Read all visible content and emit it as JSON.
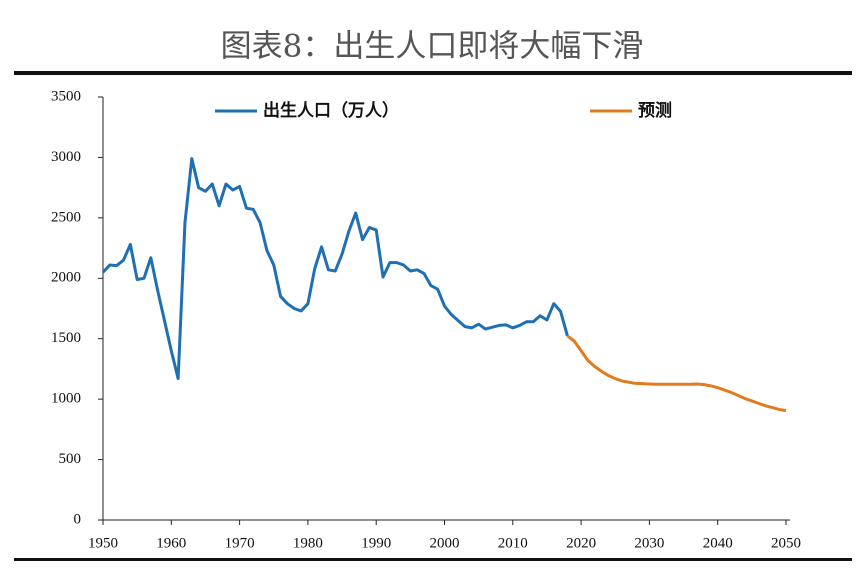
{
  "chart_data": {
    "type": "line",
    "title": "图表8：出生人口即将大幅下滑",
    "xlim": [
      1950,
      2050
    ],
    "xticks": [
      1950,
      1960,
      1970,
      1980,
      1990,
      2000,
      2010,
      2020,
      2030,
      2040,
      2050
    ],
    "ylim": [
      0,
      3500
    ],
    "yticks": [
      0,
      500,
      1000,
      1500,
      2000,
      2500,
      3000,
      3500
    ],
    "grid": false,
    "legend": "top",
    "series": [
      {
        "name": "出生人口（万人）",
        "color": "#1f6fb4",
        "x": [
          1950,
          1951,
          1952,
          1953,
          1954,
          1955,
          1956,
          1957,
          1958,
          1959,
          1960,
          1961,
          1962,
          1963,
          1964,
          1965,
          1966,
          1967,
          1968,
          1969,
          1970,
          1971,
          1972,
          1973,
          1974,
          1975,
          1976,
          1977,
          1978,
          1979,
          1980,
          1981,
          1982,
          1983,
          1984,
          1985,
          1986,
          1987,
          1988,
          1989,
          1990,
          1991,
          1992,
          1993,
          1994,
          1995,
          1996,
          1997,
          1998,
          1999,
          2000,
          2001,
          2002,
          2003,
          2004,
          2005,
          2006,
          2007,
          2008,
          2009,
          2010,
          2011,
          2012,
          2013,
          2014,
          2015,
          2016,
          2017,
          2018
        ],
        "values": [
          2050,
          2110,
          2105,
          2150,
          2280,
          1990,
          2000,
          2170,
          1900,
          1650,
          1400,
          1170,
          2460,
          2990,
          2750,
          2720,
          2780,
          2600,
          2780,
          2730,
          2760,
          2580,
          2570,
          2460,
          2230,
          2110,
          1850,
          1790,
          1750,
          1730,
          1790,
          2080,
          2260,
          2070,
          2060,
          2200,
          2390,
          2540,
          2320,
          2420,
          2400,
          2010,
          2130,
          2130,
          2110,
          2060,
          2070,
          2040,
          1940,
          1910,
          1770,
          1700,
          1650,
          1600,
          1590,
          1620,
          1580,
          1595,
          1610,
          1615,
          1590,
          1610,
          1640,
          1640,
          1690,
          1655,
          1790,
          1725,
          1523
        ]
      },
      {
        "name": "预测",
        "color": "#e07b1f",
        "x": [
          2018,
          2019,
          2020,
          2021,
          2022,
          2023,
          2024,
          2025,
          2026,
          2027,
          2028,
          2029,
          2030,
          2031,
          2032,
          2033,
          2034,
          2035,
          2036,
          2037,
          2038,
          2039,
          2040,
          2041,
          2042,
          2043,
          2044,
          2045,
          2046,
          2047,
          2048,
          2049,
          2050
        ],
        "values": [
          1523,
          1480,
          1400,
          1320,
          1270,
          1230,
          1195,
          1170,
          1150,
          1140,
          1130,
          1128,
          1125,
          1123,
          1123,
          1123,
          1123,
          1123,
          1123,
          1125,
          1120,
          1110,
          1095,
          1075,
          1055,
          1030,
          1005,
          985,
          965,
          945,
          930,
          915,
          905
        ]
      }
    ]
  }
}
